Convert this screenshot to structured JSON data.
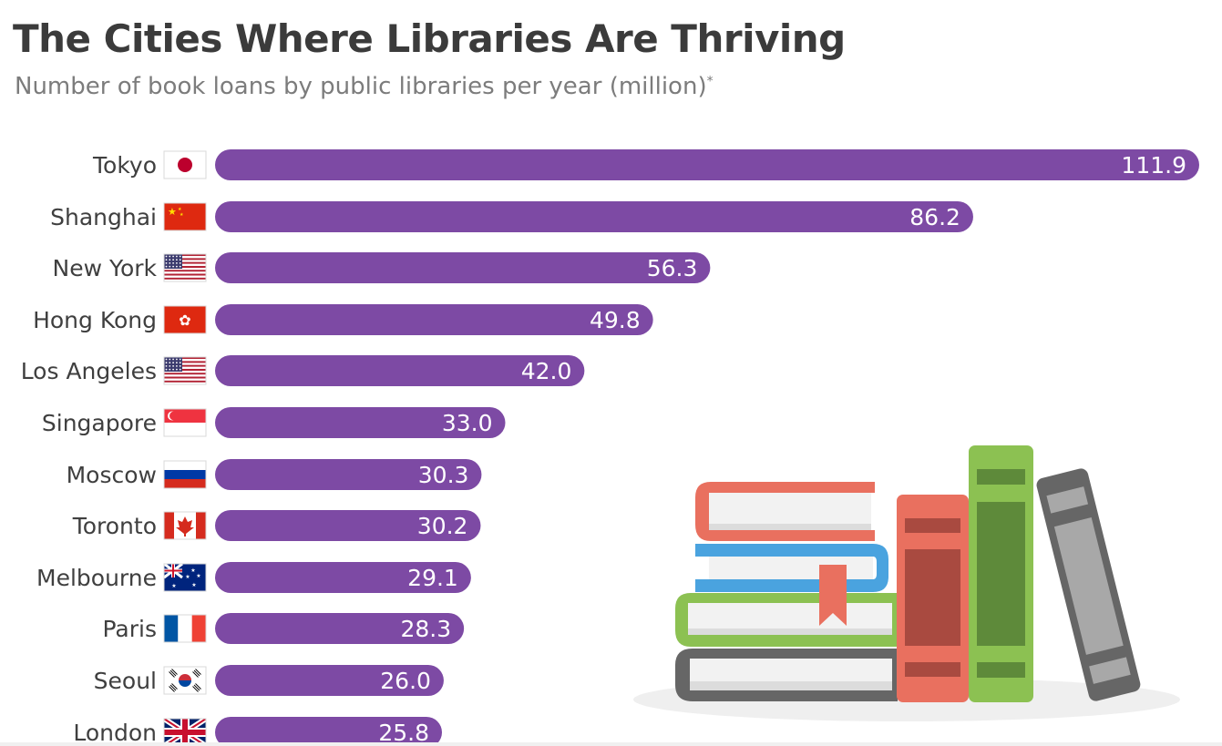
{
  "header": {
    "title": "The Cities Where Libraries Are Thriving",
    "subtitle": "Number of book loans by public libraries per year (million)",
    "subtitle_mark": "*"
  },
  "colors": {
    "bar": "#7d4aa4",
    "label_text": "#3f3f3f",
    "value_text": "#ffffff"
  },
  "chart_data": {
    "type": "bar",
    "orientation": "horizontal",
    "title": "The Cities Where Libraries Are Thriving",
    "subtitle": "Number of book loans by public libraries per year (million)*",
    "categories": [
      "Tokyo",
      "Shanghai",
      "New York",
      "Hong Kong",
      "Los Angeles",
      "Singapore",
      "Moscow",
      "Toronto",
      "Melbourne",
      "Paris",
      "Seoul",
      "London"
    ],
    "values": [
      111.9,
      86.2,
      56.3,
      49.8,
      42.0,
      33.0,
      30.3,
      30.2,
      29.1,
      28.3,
      26.0,
      25.8
    ],
    "value_labels": [
      "111.9",
      "86.2",
      "56.3",
      "49.8",
      "42.0",
      "33.0",
      "30.3",
      "30.2",
      "29.1",
      "28.3",
      "26.0",
      "25.8"
    ],
    "flags": [
      "japan-flag-icon",
      "china-flag-icon",
      "usa-flag-icon",
      "hong-kong-flag-icon",
      "usa-flag-icon",
      "singapore-flag-icon",
      "russia-flag-icon",
      "canada-flag-icon",
      "australia-flag-icon",
      "france-flag-icon",
      "south-korea-flag-icon",
      "uk-flag-icon"
    ],
    "xlim": [
      0,
      111.9
    ],
    "grid": false,
    "legend": "none"
  },
  "illustration": "books-stack-icon"
}
